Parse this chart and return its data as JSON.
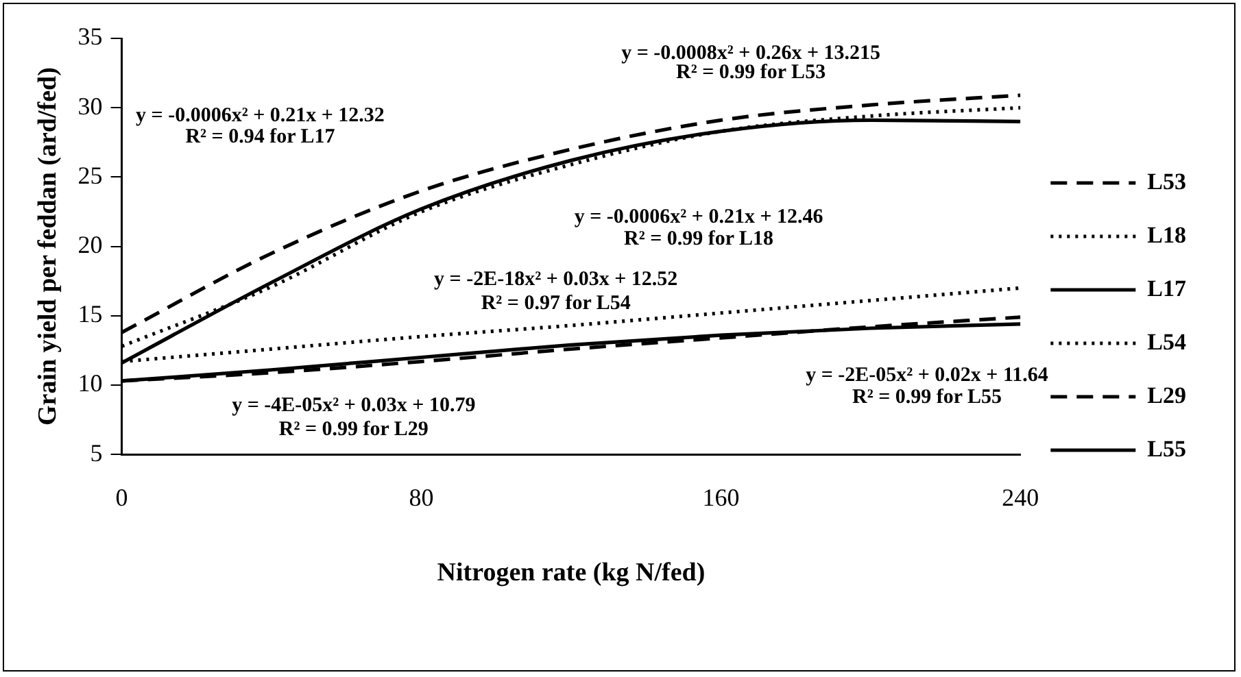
{
  "chart_data": {
    "type": "line",
    "xlabel": "Nitrogen rate (kg N/fed)",
    "ylabel": "Grain yield per feddan (ard/fed)",
    "x": [
      0,
      40,
      80,
      120,
      160,
      200,
      240
    ],
    "xlim": [
      0,
      240
    ],
    "xticks": [
      0,
      80,
      160,
      240
    ],
    "ylim": [
      5,
      35
    ],
    "yticks": [
      5,
      10,
      15,
      20,
      25,
      30,
      35
    ],
    "grid": false,
    "legend": "right",
    "marker": "none",
    "series": [
      {
        "name": "L53",
        "color": "#000000",
        "line_style": "dashed",
        "values": [
          13.8,
          19.5,
          24.0,
          27.0,
          29.1,
          30.2,
          30.9
        ]
      },
      {
        "name": "L18",
        "color": "#000000",
        "line_style": "dotted",
        "values": [
          12.8,
          17.1,
          22.5,
          25.9,
          28.3,
          29.4,
          30.0
        ]
      },
      {
        "name": "L17",
        "color": "#000000",
        "line_style": "solid",
        "values": [
          11.6,
          17.4,
          22.7,
          26.2,
          28.3,
          29.1,
          29.0
        ]
      },
      {
        "name": "L54",
        "color": "#000000",
        "line_style": "dotted",
        "values": [
          11.7,
          12.6,
          13.5,
          14.3,
          15.2,
          16.1,
          17.0
        ]
      },
      {
        "name": "L29",
        "color": "#000000",
        "line_style": "dashed",
        "values": [
          10.3,
          10.9,
          11.7,
          12.6,
          13.4,
          14.2,
          14.9
        ]
      },
      {
        "name": "L55",
        "color": "#000000",
        "line_style": "solid",
        "values": [
          10.3,
          11.1,
          12.0,
          12.9,
          13.6,
          14.1,
          14.4
        ]
      }
    ],
    "annotations": [
      "y = -0.0008x² + 0.26x + 13.215",
      "R² = 0.99 for L53",
      "y = -0.0006x² + 0.21x + 12.32",
      "R² = 0.94 for L17",
      "y = -0.0006x² + 0.21x + 12.46",
      "R² = 0.99 for L18",
      "y = -2E-18x² + 0.03x + 12.52",
      "R² = 0.97 for L54",
      "y = -2E-05x² + 0.02x + 11.64",
      "R² = 0.99 for L55",
      "y = -4E-05x² + 0.03x + 10.79",
      "R² = 0.99 for L29"
    ]
  }
}
